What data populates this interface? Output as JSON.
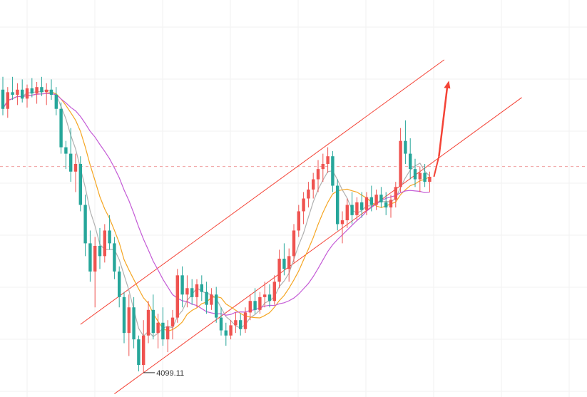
{
  "chart_data": {
    "type": "candlestick",
    "title": "",
    "xlabel": "",
    "ylabel": "",
    "y_range": [
      4080,
      4390
    ],
    "grid": true,
    "up_color": "#ef5350",
    "down_color": "#26a69a",
    "ma_colors": [
      "#b0b0b0",
      "#f5a623",
      "#c45bd6"
    ],
    "current_price_line": 4260,
    "low_annotation": "4099.11",
    "channel_color": "#f44336",
    "arrow_color": "#f44336",
    "candles": [
      [
        4320,
        4330,
        4300,
        4305
      ],
      [
        4305,
        4322,
        4298,
        4318
      ],
      [
        4318,
        4330,
        4312,
        4316
      ],
      [
        4316,
        4325,
        4308,
        4320
      ],
      [
        4320,
        4328,
        4310,
        4313
      ],
      [
        4313,
        4324,
        4306,
        4321
      ],
      [
        4321,
        4329,
        4314,
        4317
      ],
      [
        4317,
        4326,
        4309,
        4322
      ],
      [
        4322,
        4330,
        4315,
        4318
      ],
      [
        4318,
        4325,
        4308,
        4320
      ],
      [
        4320,
        4328,
        4312,
        4316
      ],
      [
        4316,
        4322,
        4300,
        4305
      ],
      [
        4305,
        4310,
        4270,
        4275
      ],
      [
        4275,
        4280,
        4258,
        4270
      ],
      [
        4270,
        4290,
        4248,
        4256
      ],
      [
        4256,
        4270,
        4240,
        4262
      ],
      [
        4262,
        4268,
        4225,
        4230
      ],
      [
        4230,
        4238,
        4190,
        4200
      ],
      [
        4200,
        4210,
        4170,
        4178
      ],
      [
        4178,
        4205,
        4150,
        4198
      ],
      [
        4198,
        4212,
        4180,
        4190
      ],
      [
        4190,
        4215,
        4185,
        4210
      ],
      [
        4210,
        4222,
        4195,
        4200
      ],
      [
        4200,
        4205,
        4172,
        4178
      ],
      [
        4178,
        4182,
        4150,
        4158
      ],
      [
        4158,
        4162,
        4122,
        4130
      ],
      [
        4130,
        4160,
        4112,
        4150
      ],
      [
        4150,
        4158,
        4118,
        4125
      ],
      [
        4125,
        4128,
        4100,
        4105
      ],
      [
        4105,
        4140,
        4099,
        4128
      ],
      [
        4128,
        4155,
        4122,
        4148
      ],
      [
        4148,
        4160,
        4125,
        4130
      ],
      [
        4130,
        4145,
        4118,
        4138
      ],
      [
        4138,
        4150,
        4120,
        4125
      ],
      [
        4125,
        4140,
        4115,
        4135
      ],
      [
        4135,
        4148,
        4125,
        4142
      ],
      [
        4142,
        4180,
        4138,
        4175
      ],
      [
        4175,
        4182,
        4150,
        4160
      ],
      [
        4160,
        4175,
        4150,
        4165
      ],
      [
        4165,
        4172,
        4152,
        4158
      ],
      [
        4158,
        4172,
        4150,
        4168
      ],
      [
        4168,
        4175,
        4155,
        4162
      ],
      [
        4162,
        4170,
        4145,
        4152
      ],
      [
        4152,
        4165,
        4148,
        4160
      ],
      [
        4160,
        4166,
        4138,
        4142
      ],
      [
        4142,
        4150,
        4128,
        4132
      ],
      [
        4132,
        4138,
        4120,
        4128
      ],
      [
        4128,
        4140,
        4125,
        4136
      ],
      [
        4136,
        4146,
        4130,
        4140
      ],
      [
        4140,
        4145,
        4128,
        4133
      ],
      [
        4133,
        4150,
        4130,
        4146
      ],
      [
        4146,
        4160,
        4140,
        4155
      ],
      [
        4155,
        4165,
        4145,
        4148
      ],
      [
        4148,
        4162,
        4145,
        4158
      ],
      [
        4158,
        4170,
        4150,
        4160
      ],
      [
        4160,
        4168,
        4150,
        4155
      ],
      [
        4155,
        4175,
        4152,
        4170
      ],
      [
        4170,
        4195,
        4165,
        4188
      ],
      [
        4188,
        4200,
        4175,
        4180
      ],
      [
        4180,
        4196,
        4170,
        4190
      ],
      [
        4190,
        4215,
        4185,
        4210
      ],
      [
        4210,
        4230,
        4205,
        4225
      ],
      [
        4225,
        4240,
        4215,
        4235
      ],
      [
        4235,
        4248,
        4228,
        4242
      ],
      [
        4242,
        4255,
        4235,
        4250
      ],
      [
        4250,
        4265,
        4240,
        4258
      ],
      [
        4258,
        4270,
        4248,
        4262
      ],
      [
        4262,
        4275,
        4255,
        4268
      ],
      [
        4268,
        4272,
        4240,
        4245
      ],
      [
        4245,
        4250,
        4210,
        4215
      ],
      [
        4215,
        4225,
        4200,
        4218
      ],
      [
        4218,
        4235,
        4212,
        4230
      ],
      [
        4230,
        4240,
        4215,
        4222
      ],
      [
        4222,
        4236,
        4218,
        4232
      ],
      [
        4232,
        4240,
        4220,
        4226
      ],
      [
        4226,
        4240,
        4222,
        4236
      ],
      [
        4236,
        4245,
        4225,
        4230
      ],
      [
        4230,
        4242,
        4226,
        4238
      ],
      [
        4238,
        4244,
        4228,
        4232
      ],
      [
        4232,
        4240,
        4222,
        4228
      ],
      [
        4228,
        4238,
        4220,
        4234
      ],
      [
        4234,
        4248,
        4228,
        4244
      ],
      [
        4244,
        4290,
        4240,
        4280
      ],
      [
        4280,
        4296,
        4262,
        4270
      ],
      [
        4270,
        4282,
        4250,
        4258
      ],
      [
        4258,
        4266,
        4244,
        4250
      ],
      [
        4250,
        4260,
        4240,
        4255
      ],
      [
        4255,
        4262,
        4244,
        4248
      ],
      [
        4248,
        4256,
        4240,
        4252
      ]
    ]
  }
}
